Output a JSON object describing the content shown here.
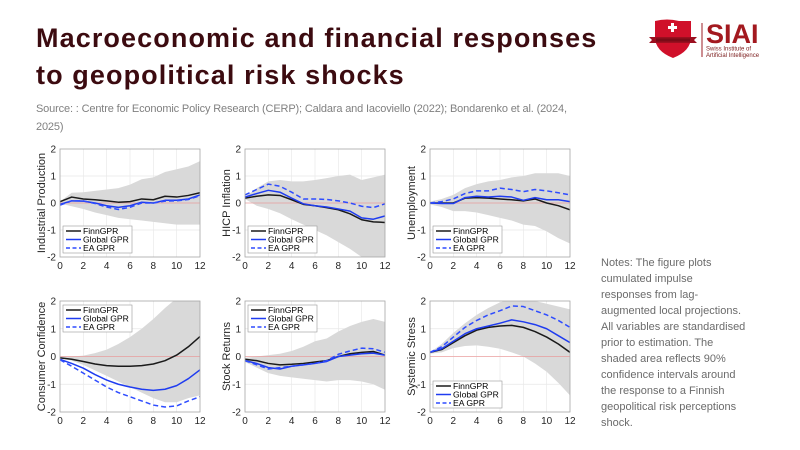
{
  "header": {
    "title_lines": [
      "Macroeconomic and financial responses",
      "to geopolitical risk shocks"
    ],
    "source_lines": [
      "Source: : Centre for Economic Policy Research (CERP); Caldara and Iacoviello (2022); Bondarenko et al. (2024,",
      "2025)"
    ]
  },
  "logo": {
    "name": "SIAI",
    "subtitle_lines": [
      "Swiss Institute of",
      "Artificial Intelligence"
    ],
    "brand_color": "#b01c24",
    "shield_color": "#d0102a"
  },
  "notes": {
    "lines": [
      "Notes: The figure plots",
      "cumulated impulse",
      "responses from lag-",
      "augmented local projections.",
      "All variables are standardised",
      "prior to estimation. The",
      "shaded area reflects 90%",
      "confidence intervals around",
      "the response to a Finnish",
      "geopolitical risk perceptions",
      "shock."
    ]
  },
  "colors": {
    "title": "#3c0b10",
    "band": "#d9d9d9",
    "zero_line": "#f08080"
  },
  "chart_data": [
    {
      "type": "line",
      "title": "",
      "xlabel": "",
      "ylabel": "Industrial Production",
      "x": [
        0,
        1,
        2,
        3,
        4,
        5,
        6,
        7,
        8,
        9,
        10,
        11,
        12
      ],
      "xlim": [
        0,
        12
      ],
      "ylim": [
        -2,
        2
      ],
      "xticks": [
        0,
        2,
        4,
        6,
        8,
        10,
        12
      ],
      "yticks": [
        -2,
        -1,
        0,
        1,
        2
      ],
      "grid": true,
      "legend": "bottom-left",
      "band": {
        "label": "90% confidence interval",
        "upper": [
          0.05,
          0.38,
          0.4,
          0.45,
          0.5,
          0.55,
          0.68,
          0.88,
          0.95,
          1.15,
          1.25,
          1.35,
          1.55
        ],
        "lower": [
          -0.02,
          -0.12,
          -0.22,
          -0.35,
          -0.45,
          -0.55,
          -0.6,
          -0.65,
          -0.7,
          -0.75,
          -0.8,
          -0.8,
          -0.8
        ]
      },
      "series": [
        {
          "name": "FinnGPR",
          "color": "#1a1a1a",
          "style": "solid",
          "values": [
            0.05,
            0.22,
            0.15,
            0.12,
            0.08,
            0.03,
            0.05,
            0.15,
            0.12,
            0.25,
            0.22,
            0.28,
            0.38
          ]
        },
        {
          "name": "Global GPR",
          "color": "#1f3cf0",
          "style": "solid",
          "values": [
            -0.05,
            0.08,
            0.07,
            0.0,
            -0.1,
            -0.16,
            -0.1,
            0.03,
            0.0,
            0.1,
            0.1,
            0.15,
            0.3
          ]
        },
        {
          "name": "EA GPR",
          "color": "#2e4cff",
          "style": "dashed",
          "values": [
            -0.08,
            0.08,
            0.08,
            -0.02,
            -0.15,
            -0.24,
            -0.16,
            0.0,
            0.0,
            0.07,
            0.08,
            0.13,
            0.27
          ]
        }
      ]
    },
    {
      "type": "line",
      "title": "",
      "xlabel": "",
      "ylabel": "HICP Inflation",
      "x": [
        0,
        1,
        2,
        3,
        4,
        5,
        6,
        7,
        8,
        9,
        10,
        11,
        12
      ],
      "xlim": [
        0,
        12
      ],
      "ylim": [
        -2,
        2
      ],
      "xticks": [
        0,
        2,
        4,
        6,
        8,
        10,
        12
      ],
      "yticks": [
        -2,
        -1,
        0,
        1,
        2
      ],
      "grid": true,
      "legend": "bottom-left",
      "band": {
        "label": "90% confidence interval",
        "upper": [
          0.22,
          0.55,
          0.8,
          0.85,
          0.8,
          0.8,
          0.85,
          0.92,
          1.0,
          1.05,
          0.85,
          0.95,
          1.05
        ],
        "lower": [
          0.15,
          -0.1,
          -0.22,
          -0.38,
          -0.6,
          -0.8,
          -1.0,
          -1.2,
          -1.45,
          -1.7,
          -2.0,
          -2.2,
          -2.3
        ]
      },
      "series": [
        {
          "name": "FinnGPR",
          "color": "#1a1a1a",
          "style": "solid",
          "values": [
            0.18,
            0.25,
            0.3,
            0.28,
            0.12,
            -0.05,
            -0.1,
            -0.17,
            -0.25,
            -0.4,
            -0.62,
            -0.7,
            -0.72
          ]
        },
        {
          "name": "Global GPR",
          "color": "#1f3cf0",
          "style": "solid",
          "values": [
            0.22,
            0.35,
            0.47,
            0.4,
            0.18,
            -0.03,
            -0.1,
            -0.15,
            -0.22,
            -0.3,
            -0.55,
            -0.6,
            -0.48
          ]
        },
        {
          "name": "EA GPR",
          "color": "#2e4cff",
          "style": "dashed",
          "values": [
            0.3,
            0.5,
            0.7,
            0.62,
            0.4,
            0.15,
            0.15,
            0.13,
            0.08,
            0.0,
            -0.12,
            -0.17,
            -0.03
          ]
        }
      ]
    },
    {
      "type": "line",
      "title": "",
      "xlabel": "",
      "ylabel": "Unemployment",
      "x": [
        0,
        1,
        2,
        3,
        4,
        5,
        6,
        7,
        8,
        9,
        10,
        11,
        12
      ],
      "xlim": [
        0,
        12
      ],
      "ylim": [
        -2,
        2
      ],
      "xticks": [
        0,
        2,
        4,
        6,
        8,
        10,
        12
      ],
      "yticks": [
        -2,
        -1,
        0,
        1,
        2
      ],
      "grid": true,
      "legend": "bottom-left",
      "band": {
        "label": "90% confidence interval",
        "upper": [
          0.05,
          0.15,
          0.3,
          0.55,
          0.7,
          0.8,
          0.85,
          0.95,
          1.0,
          1.1,
          1.1,
          1.1,
          1.0
        ],
        "lower": [
          -0.05,
          -0.15,
          -0.3,
          -0.3,
          -0.35,
          -0.45,
          -0.55,
          -0.65,
          -0.8,
          -0.85,
          -1.05,
          -1.3,
          -1.5
        ]
      },
      "series": [
        {
          "name": "FinnGPR",
          "color": "#1a1a1a",
          "style": "solid",
          "values": [
            0.0,
            0.0,
            0.0,
            0.18,
            0.2,
            0.18,
            0.15,
            0.12,
            0.08,
            0.15,
            0.0,
            -0.1,
            -0.25
          ]
        },
        {
          "name": "Global GPR",
          "color": "#1f3cf0",
          "style": "solid",
          "values": [
            0.0,
            -0.02,
            -0.02,
            0.2,
            0.25,
            0.22,
            0.25,
            0.22,
            0.1,
            0.2,
            0.12,
            0.12,
            0.05
          ]
        },
        {
          "name": "EA GPR",
          "color": "#2e4cff",
          "style": "dashed",
          "values": [
            0.0,
            0.05,
            0.15,
            0.35,
            0.45,
            0.45,
            0.55,
            0.5,
            0.42,
            0.5,
            0.45,
            0.38,
            0.3
          ]
        }
      ]
    },
    {
      "type": "line",
      "title": "",
      "xlabel": "",
      "ylabel": "Consumer Confidence",
      "x": [
        0,
        1,
        2,
        3,
        4,
        5,
        6,
        7,
        8,
        9,
        10,
        11,
        12
      ],
      "xlim": [
        0,
        12
      ],
      "ylim": [
        -2,
        2
      ],
      "xticks": [
        0,
        2,
        4,
        6,
        8,
        10,
        12
      ],
      "yticks": [
        -2,
        -1,
        0,
        1,
        2
      ],
      "grid": true,
      "legend": "top-left",
      "band": {
        "label": "90% confidence interval",
        "upper": [
          0.0,
          0.0,
          0.03,
          0.12,
          0.25,
          0.45,
          0.7,
          1.0,
          1.35,
          1.75,
          2.1,
          2.4,
          2.7
        ],
        "lower": [
          -0.05,
          -0.15,
          -0.3,
          -0.5,
          -0.7,
          -0.9,
          -1.1,
          -1.3,
          -1.5,
          -1.65,
          -1.65,
          -1.5,
          -1.4
        ]
      },
      "series": [
        {
          "name": "FinnGPR",
          "color": "#1a1a1a",
          "style": "solid",
          "values": [
            -0.05,
            -0.1,
            -0.18,
            -0.27,
            -0.33,
            -0.35,
            -0.35,
            -0.33,
            -0.27,
            -0.15,
            0.05,
            0.35,
            0.72
          ]
        },
        {
          "name": "Global GPR",
          "color": "#1f3cf0",
          "style": "solid",
          "values": [
            -0.1,
            -0.25,
            -0.42,
            -0.65,
            -0.85,
            -1.0,
            -1.1,
            -1.18,
            -1.22,
            -1.18,
            -1.05,
            -0.8,
            -0.48
          ]
        },
        {
          "name": "EA GPR",
          "color": "#2e4cff",
          "style": "dashed",
          "values": [
            -0.12,
            -0.35,
            -0.6,
            -0.85,
            -1.1,
            -1.3,
            -1.45,
            -1.6,
            -1.75,
            -1.82,
            -1.78,
            -1.6,
            -1.45
          ]
        }
      ]
    },
    {
      "type": "line",
      "title": "",
      "xlabel": "",
      "ylabel": "Stock Returns",
      "x": [
        0,
        1,
        2,
        3,
        4,
        5,
        6,
        7,
        8,
        9,
        10,
        11,
        12
      ],
      "xlim": [
        0,
        12
      ],
      "ylim": [
        -2,
        2
      ],
      "xticks": [
        0,
        2,
        4,
        6,
        8,
        10,
        12
      ],
      "yticks": [
        -2,
        -1,
        0,
        1,
        2
      ],
      "grid": true,
      "legend": "top-left",
      "band": {
        "label": "90% confidence interval",
        "upper": [
          -0.05,
          0.0,
          0.05,
          0.1,
          0.2,
          0.35,
          0.55,
          0.65,
          0.9,
          1.1,
          1.25,
          1.35,
          1.25
        ],
        "lower": [
          -0.2,
          -0.4,
          -0.6,
          -0.7,
          -0.75,
          -0.8,
          -0.85,
          -0.9,
          -0.85,
          -0.85,
          -0.9,
          -1.0,
          -1.2
        ]
      },
      "series": [
        {
          "name": "FinnGPR",
          "color": "#1a1a1a",
          "style": "solid",
          "values": [
            -0.1,
            -0.15,
            -0.25,
            -0.3,
            -0.28,
            -0.25,
            -0.2,
            -0.15,
            0.0,
            0.1,
            0.15,
            0.18,
            0.05
          ]
        },
        {
          "name": "Global GPR",
          "color": "#1f3cf0",
          "style": "solid",
          "values": [
            -0.15,
            -0.25,
            -0.4,
            -0.45,
            -0.35,
            -0.3,
            -0.25,
            -0.18,
            0.0,
            0.05,
            0.1,
            0.12,
            0.05
          ]
        },
        {
          "name": "EA GPR",
          "color": "#2e4cff",
          "style": "dashed",
          "values": [
            -0.15,
            -0.3,
            -0.45,
            -0.4,
            -0.35,
            -0.3,
            -0.25,
            -0.15,
            0.08,
            0.2,
            0.3,
            0.28,
            0.15
          ]
        }
      ]
    },
    {
      "type": "line",
      "title": "",
      "xlabel": "",
      "ylabel": "Systemic Stress",
      "x": [
        0,
        1,
        2,
        3,
        4,
        5,
        6,
        7,
        8,
        9,
        10,
        11,
        12
      ],
      "xlim": [
        0,
        12
      ],
      "ylim": [
        -2,
        2
      ],
      "xticks": [
        0,
        2,
        4,
        6,
        8,
        10,
        12
      ],
      "yticks": [
        -2,
        -1,
        0,
        1,
        2
      ],
      "grid": true,
      "legend": "bottom-left",
      "band": {
        "label": "90% confidence interval",
        "upper": [
          0.15,
          0.45,
          0.85,
          1.2,
          1.5,
          1.75,
          1.95,
          2.1,
          2.1,
          2.0,
          1.9,
          1.8,
          1.7
        ],
        "lower": [
          0.1,
          0.15,
          0.3,
          0.38,
          0.4,
          0.35,
          0.28,
          0.15,
          0.0,
          -0.25,
          -0.55,
          -0.95,
          -1.4
        ]
      },
      "series": [
        {
          "name": "FinnGPR",
          "color": "#1a1a1a",
          "style": "solid",
          "values": [
            0.15,
            0.25,
            0.5,
            0.75,
            0.95,
            1.05,
            1.1,
            1.12,
            1.05,
            0.9,
            0.7,
            0.45,
            0.15
          ]
        },
        {
          "name": "Global GPR",
          "color": "#1f3cf0",
          "style": "solid",
          "values": [
            0.15,
            0.28,
            0.55,
            0.82,
            1.0,
            1.1,
            1.2,
            1.32,
            1.25,
            1.15,
            1.0,
            0.75,
            0.5
          ]
        },
        {
          "name": "EA GPR",
          "color": "#2e4cff",
          "style": "dashed",
          "values": [
            0.15,
            0.35,
            0.7,
            1.05,
            1.3,
            1.5,
            1.65,
            1.82,
            1.8,
            1.65,
            1.5,
            1.3,
            1.05
          ]
        }
      ]
    }
  ]
}
